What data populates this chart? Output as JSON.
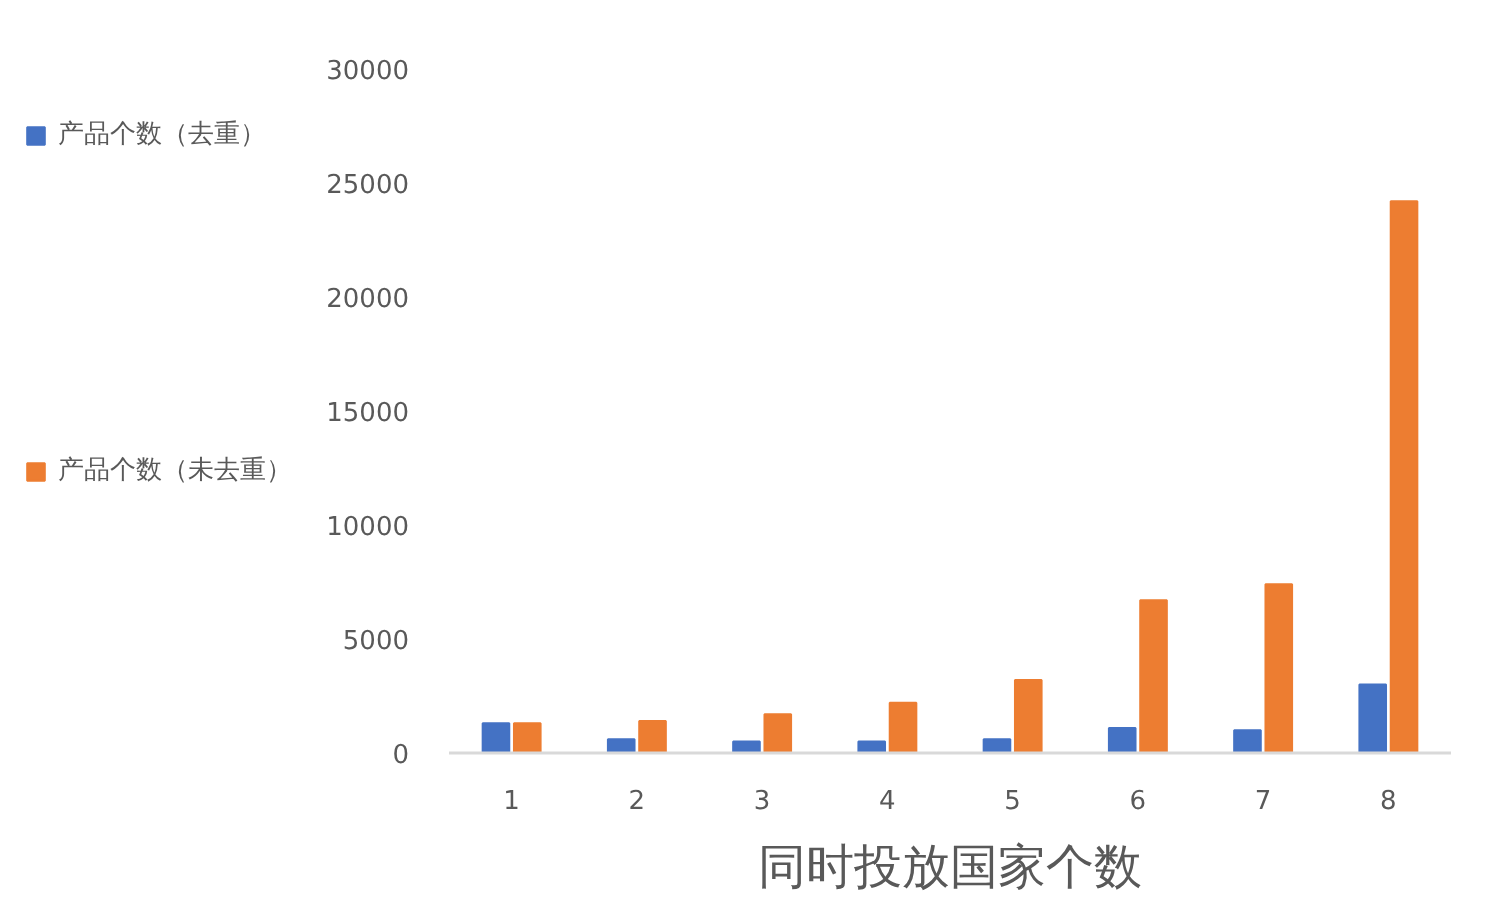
{
  "chart_data": {
    "type": "bar",
    "xlabel": "同时投放国家个数",
    "categories": [
      "1",
      "2",
      "3",
      "4",
      "5",
      "6",
      "7",
      "8"
    ],
    "series": [
      {
        "name": "产品个数（去重）",
        "color": "#4472c4",
        "values": [
          1300,
          600,
          500,
          500,
          600,
          1100,
          1000,
          3000
        ]
      },
      {
        "name": "产品个数（未去重）",
        "color": "#ed7d31",
        "values": [
          1300,
          1400,
          1700,
          2200,
          3200,
          6700,
          7400,
          24200
        ]
      }
    ],
    "ylim": [
      0,
      30000
    ],
    "yticks": [
      0,
      5000,
      10000,
      15000,
      20000,
      25000,
      30000
    ],
    "grid": false,
    "legend": "left"
  }
}
